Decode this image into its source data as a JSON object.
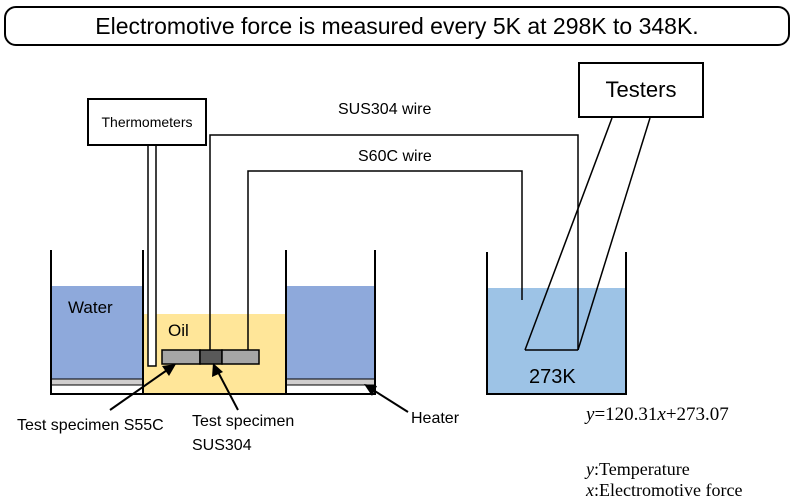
{
  "title": "Electromotive force is measured every 5K at 298K to 348K.",
  "labels": {
    "thermometers": "Thermometers",
    "testers": "Testers",
    "sus304_wire": "SUS304 wire",
    "s60c_wire": "S60C wire",
    "water": "Water",
    "oil": "Oil",
    "cold_temp": "273K",
    "specimen_s55c": "Test specimen S55C",
    "specimen_sus304_line1": "Test specimen",
    "specimen_sus304_line2": "SUS304",
    "heater": "Heater"
  },
  "equation": {
    "y": "y",
    "eq1": "=120.31",
    "x": "x",
    "eq2": "+273.07",
    "y_def_sym": "y",
    "y_def": ":Temperature",
    "x_def_sym": "x",
    "x_def": ":Electromotive force"
  },
  "colors": {
    "water": "#8ea9db",
    "oil": "#ffe699",
    "cold_bath": "#9dc3e6",
    "specimen_light": "#a6a6a6",
    "specimen_dark": "#595959",
    "heater": "#d0cece"
  }
}
